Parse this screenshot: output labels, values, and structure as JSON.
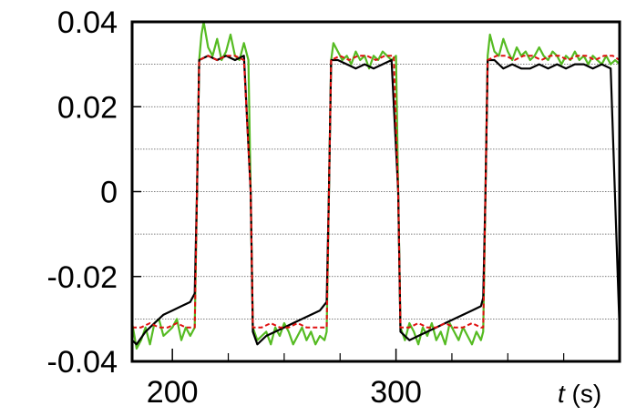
{
  "chart_data": {
    "type": "line",
    "title": "",
    "xlabel_var": "t",
    "xlabel_unit": " (s)",
    "ylabel": "",
    "xlim": [
      182,
      400
    ],
    "ylim": [
      -0.04,
      0.04
    ],
    "grid": "horizontal dotted",
    "legend": "none",
    "x_ticks": [
      200,
      300
    ],
    "x_tick_labels": [
      "200",
      "300"
    ],
    "x_minor_ticks": [
      225,
      250,
      275,
      325,
      350,
      375
    ],
    "y_ticks": [
      -0.04,
      -0.02,
      0,
      0.02,
      0.04
    ],
    "y_tick_labels": [
      "-0.04",
      "-0.02",
      "0",
      "0.02",
      "0.04"
    ],
    "y_gridlines": [
      -0.03,
      -0.02,
      -0.01,
      0,
      0.01,
      0.02,
      0.03
    ],
    "series": [
      {
        "color": "#55bb22",
        "style": "solid",
        "x": [
          182,
          183,
          184,
          186,
          188,
          190,
          192,
          194,
          196,
          198,
          200,
          202,
          204,
          206,
          208,
          210,
          211,
          212,
          213,
          214,
          216,
          218,
          220,
          222,
          224,
          226,
          228,
          230,
          232,
          234,
          235,
          236,
          238,
          240,
          242,
          244,
          246,
          248,
          250,
          252,
          254,
          256,
          258,
          260,
          262,
          264,
          266,
          268,
          269,
          270,
          271,
          272,
          274,
          276,
          278,
          280,
          282,
          284,
          286,
          288,
          290,
          292,
          294,
          296,
          298,
          300,
          301,
          302,
          304,
          306,
          308,
          310,
          312,
          314,
          316,
          318,
          320,
          322,
          324,
          326,
          328,
          330,
          332,
          334,
          336,
          338,
          339,
          340,
          341,
          342,
          344,
          346,
          348,
          350,
          352,
          354,
          356,
          358,
          360,
          362,
          364,
          366,
          368,
          370,
          372,
          374,
          376,
          378,
          380,
          382,
          384,
          386,
          388,
          390,
          392,
          394,
          396,
          398,
          400
        ],
        "values": [
          -0.031,
          -0.034,
          -0.037,
          -0.035,
          -0.032,
          -0.036,
          -0.031,
          -0.03,
          -0.034,
          -0.033,
          -0.032,
          -0.03,
          -0.035,
          -0.032,
          -0.034,
          -0.032,
          0.0,
          0.031,
          0.037,
          0.04,
          0.034,
          0.032,
          0.036,
          0.031,
          0.033,
          0.037,
          0.032,
          0.031,
          0.035,
          0.031,
          0.0,
          -0.032,
          -0.035,
          -0.034,
          -0.033,
          -0.036,
          -0.032,
          -0.034,
          -0.031,
          -0.033,
          -0.036,
          -0.034,
          -0.032,
          -0.035,
          -0.033,
          -0.036,
          -0.034,
          -0.035,
          -0.033,
          0.0,
          0.031,
          0.035,
          0.033,
          0.031,
          0.032,
          0.03,
          0.033,
          0.031,
          0.032,
          0.029,
          0.032,
          0.031,
          0.033,
          0.032,
          0.031,
          0.032,
          0.0,
          -0.032,
          -0.035,
          -0.031,
          -0.033,
          -0.036,
          -0.032,
          -0.034,
          -0.031,
          -0.035,
          -0.033,
          -0.036,
          -0.031,
          -0.033,
          -0.035,
          -0.032,
          -0.034,
          -0.036,
          -0.033,
          -0.035,
          -0.033,
          0.0,
          0.032,
          0.037,
          0.033,
          0.032,
          0.036,
          0.033,
          0.031,
          0.034,
          0.032,
          0.033,
          0.031,
          0.032,
          0.034,
          0.032,
          0.031,
          0.033,
          0.032,
          0.03,
          0.032,
          0.031,
          0.033,
          0.031,
          0.032,
          0.03,
          0.032,
          0.031,
          0.03,
          0.032,
          0.03,
          0.031,
          0.03
        ]
      },
      {
        "color": "#000000",
        "style": "solid",
        "x": [
          182,
          184,
          188,
          192,
          196,
          200,
          204,
          208,
          210,
          211,
          212,
          216,
          220,
          224,
          228,
          232,
          235,
          236,
          238,
          242,
          246,
          250,
          254,
          258,
          262,
          266,
          269,
          270,
          271,
          274,
          278,
          282,
          286,
          290,
          294,
          298,
          301,
          302,
          306,
          310,
          314,
          318,
          322,
          326,
          330,
          334,
          338,
          339,
          340,
          341,
          344,
          348,
          352,
          356,
          360,
          364,
          368,
          372,
          376,
          380,
          384,
          388,
          392,
          396,
          400
        ],
        "values": [
          -0.035,
          -0.036,
          -0.033,
          -0.031,
          -0.029,
          -0.028,
          -0.027,
          -0.026,
          -0.024,
          0.0,
          0.031,
          0.032,
          0.031,
          0.032,
          0.031,
          0.032,
          0.0,
          -0.033,
          -0.036,
          -0.034,
          -0.033,
          -0.032,
          -0.031,
          -0.03,
          -0.029,
          -0.028,
          -0.026,
          0.0,
          0.031,
          0.031,
          0.03,
          0.029,
          0.03,
          0.029,
          0.03,
          0.031,
          0.0,
          -0.033,
          -0.035,
          -0.034,
          -0.033,
          -0.032,
          -0.031,
          -0.03,
          -0.029,
          -0.028,
          -0.027,
          -0.025,
          0.0,
          0.031,
          0.031,
          0.029,
          0.03,
          0.029,
          0.029,
          0.03,
          0.029,
          0.03,
          0.029,
          0.03,
          0.03,
          0.029,
          0.03,
          0.029,
          -0.033
        ]
      },
      {
        "color": "#e01010",
        "style": "dashed",
        "x": [
          182,
          186,
          190,
          194,
          198,
          202,
          206,
          210,
          211,
          212,
          216,
          220,
          224,
          228,
          232,
          235,
          236,
          240,
          244,
          248,
          252,
          256,
          260,
          264,
          269,
          270,
          271,
          275,
          279,
          283,
          287,
          291,
          295,
          299,
          301,
          302,
          306,
          310,
          314,
          318,
          322,
          326,
          330,
          334,
          338,
          339,
          340,
          341,
          345,
          349,
          353,
          357,
          361,
          365,
          369,
          373,
          377,
          381,
          385,
          389,
          393,
          397,
          400
        ],
        "values": [
          -0.032,
          -0.032,
          -0.031,
          -0.032,
          -0.032,
          -0.031,
          -0.032,
          -0.032,
          0.0,
          0.031,
          0.032,
          0.031,
          0.032,
          0.032,
          0.031,
          0.0,
          -0.032,
          -0.032,
          -0.031,
          -0.032,
          -0.032,
          -0.031,
          -0.032,
          -0.032,
          -0.032,
          0.0,
          0.031,
          0.032,
          0.031,
          0.032,
          0.032,
          0.031,
          0.032,
          0.032,
          0.0,
          -0.032,
          -0.032,
          -0.031,
          -0.032,
          -0.032,
          -0.031,
          -0.032,
          -0.032,
          -0.031,
          -0.032,
          -0.032,
          0.0,
          0.031,
          0.032,
          0.032,
          0.031,
          0.032,
          0.032,
          0.031,
          0.032,
          0.032,
          0.031,
          0.032,
          0.032,
          0.031,
          0.032,
          0.032,
          0.031
        ]
      }
    ]
  }
}
